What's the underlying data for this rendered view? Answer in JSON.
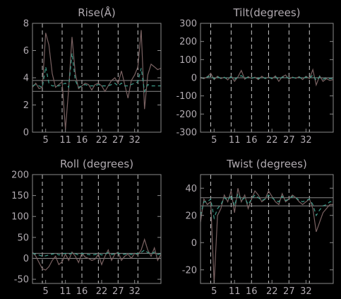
{
  "colors": {
    "background": "#000000",
    "axes": "#8a8a8a",
    "text": "#b0aab0",
    "series_main": "#7a6262",
    "series_ref": "#3e9c8a",
    "hlines": "#8a8a8a",
    "vlines": "#c8c8c8"
  },
  "chart_data": [
    {
      "id": "rise",
      "type": "line",
      "title": "Rise(Å)",
      "xlim": [
        1,
        40
      ],
      "ylim": [
        0,
        8
      ],
      "yticks": [
        0,
        2,
        4,
        6,
        8
      ],
      "xticks": [
        5,
        11,
        16,
        22,
        27,
        32
      ],
      "xtick_labels": [
        "5",
        "11",
        "16",
        "22",
        "27",
        "32"
      ],
      "vlines": [
        4,
        10,
        16,
        21,
        27,
        33
      ],
      "hlines": [
        3.0,
        3.8
      ],
      "x": [
        1,
        2,
        3,
        4,
        5,
        6,
        7,
        8,
        9,
        10,
        11,
        12,
        13,
        14,
        15,
        16,
        17,
        18,
        19,
        20,
        21,
        22,
        23,
        24,
        25,
        26,
        27,
        28,
        29,
        30,
        31,
        32,
        33,
        34,
        35,
        36,
        37,
        38,
        39,
        40
      ],
      "series": [
        {
          "name": "main",
          "color": "#7a6262",
          "values": [
            3.3,
            3.6,
            3.2,
            3.3,
            7.3,
            6.4,
            4.3,
            3.3,
            3.5,
            3.7,
            0.2,
            3.2,
            7.0,
            4.3,
            3.2,
            3.4,
            3.6,
            3.5,
            3.1,
            3.5,
            3.6,
            3.4,
            3.0,
            3.4,
            3.8,
            4.0,
            3.6,
            4.5,
            3.5,
            2.5,
            3.8,
            4.2,
            4.8,
            7.5,
            1.7,
            4.2,
            5.0,
            4.8,
            4.6,
            4.7
          ]
        },
        {
          "name": "reference",
          "color": "#3e9c8a",
          "dashed": true,
          "values": [
            3.4,
            3.5,
            3.4,
            3.3,
            4.8,
            3.6,
            3.4,
            3.4,
            3.4,
            3.5,
            3.6,
            3.3,
            5.8,
            3.8,
            3.3,
            3.4,
            3.5,
            3.4,
            3.4,
            3.4,
            3.5,
            3.4,
            3.4,
            3.4,
            3.5,
            3.6,
            3.4,
            3.6,
            3.4,
            3.4,
            3.5,
            3.6,
            3.7,
            4.7,
            3.0,
            3.5,
            3.4,
            3.4,
            3.4,
            3.4
          ]
        }
      ]
    },
    {
      "id": "tilt",
      "type": "line",
      "title": "Tilt(degrees)",
      "xlim": [
        1,
        40
      ],
      "ylim": [
        -300,
        300
      ],
      "yticks": [
        -300,
        -200,
        -100,
        0,
        100,
        200,
        300
      ],
      "xticks": [
        5,
        11,
        16,
        22,
        27,
        32
      ],
      "xtick_labels": [
        "5",
        "11",
        "16",
        "22",
        "27",
        "32"
      ],
      "vlines": [
        4,
        10,
        16,
        21,
        27,
        33
      ],
      "hlines": [
        0
      ],
      "x": [
        1,
        2,
        3,
        4,
        5,
        6,
        7,
        8,
        9,
        10,
        11,
        12,
        13,
        14,
        15,
        16,
        17,
        18,
        19,
        20,
        21,
        22,
        23,
        24,
        25,
        26,
        27,
        28,
        29,
        30,
        31,
        32,
        33,
        34,
        35,
        36,
        37,
        38,
        39,
        40
      ],
      "series": [
        {
          "name": "main",
          "color": "#7a6262",
          "values": [
            0,
            -5,
            5,
            25,
            -10,
            8,
            -5,
            3,
            -12,
            10,
            -20,
            5,
            40,
            -8,
            6,
            -4,
            3,
            -10,
            8,
            -5,
            4,
            -6,
            10,
            -20,
            5,
            15,
            -8,
            4,
            -3,
            6,
            -10,
            8,
            -5,
            45,
            -40,
            10,
            -20,
            -5,
            -15,
            -10
          ]
        },
        {
          "name": "reference",
          "color": "#3e9c8a",
          "dashed": true,
          "values": [
            2,
            -3,
            4,
            10,
            -6,
            5,
            -3,
            2,
            -6,
            5,
            -8,
            4,
            12,
            -4,
            3,
            -2,
            2,
            -5,
            4,
            -3,
            3,
            -3,
            5,
            -8,
            3,
            6,
            -4,
            2,
            -2,
            3,
            -5,
            4,
            -3,
            15,
            -14,
            5,
            -8,
            -2,
            -6,
            -4
          ]
        }
      ]
    },
    {
      "id": "roll",
      "type": "line",
      "title": "Roll (degrees)",
      "xlim": [
        1,
        40
      ],
      "ylim": [
        -60,
        200
      ],
      "yticks": [
        -50,
        0,
        50,
        100,
        150,
        200
      ],
      "xticks": [
        5,
        11,
        16,
        22,
        27,
        32
      ],
      "xtick_labels": [
        "5",
        "11",
        "16",
        "22",
        "27",
        "32"
      ],
      "vlines": [
        4,
        10,
        16,
        21,
        27,
        33
      ],
      "hlines": [
        0,
        12
      ],
      "x": [
        1,
        2,
        3,
        4,
        5,
        6,
        7,
        8,
        9,
        10,
        11,
        12,
        13,
        14,
        15,
        16,
        17,
        18,
        19,
        20,
        21,
        22,
        23,
        24,
        25,
        26,
        27,
        28,
        29,
        30,
        31,
        32,
        33,
        34,
        35,
        36,
        37,
        38,
        39,
        40
      ],
      "series": [
        {
          "name": "main",
          "color": "#7a6262",
          "values": [
            15,
            5,
            -10,
            -25,
            -28,
            -20,
            -5,
            5,
            -15,
            -8,
            10,
            -5,
            15,
            5,
            -10,
            12,
            3,
            0,
            -5,
            -2,
            10,
            -15,
            5,
            20,
            -5,
            10,
            15,
            -5,
            5,
            10,
            0,
            12,
            8,
            20,
            45,
            20,
            5,
            25,
            -5,
            10
          ]
        },
        {
          "name": "reference",
          "color": "#3e9c8a",
          "dashed": true,
          "values": [
            12,
            10,
            8,
            5,
            6,
            8,
            10,
            12,
            8,
            10,
            12,
            9,
            13,
            11,
            8,
            12,
            10,
            9,
            8,
            9,
            11,
            8,
            10,
            14,
            9,
            11,
            13,
            9,
            10,
            11,
            9,
            12,
            11,
            14,
            20,
            14,
            10,
            15,
            9,
            11
          ]
        }
      ]
    },
    {
      "id": "twist",
      "type": "line",
      "title": "Twist (degrees)",
      "xlim": [
        1,
        40
      ],
      "ylim": [
        -30,
        50
      ],
      "yticks": [
        -20,
        0,
        20,
        40
      ],
      "xticks": [
        5,
        11,
        16,
        22,
        27,
        32
      ],
      "xtick_labels": [
        "5",
        "11",
        "16",
        "22",
        "27",
        "32"
      ],
      "vlines": [
        4,
        10,
        16,
        21,
        27,
        33
      ],
      "hlines": [
        27,
        33
      ],
      "x": [
        1,
        2,
        3,
        4,
        5,
        6,
        7,
        8,
        9,
        10,
        11,
        12,
        13,
        14,
        15,
        16,
        17,
        18,
        19,
        20,
        21,
        22,
        23,
        24,
        25,
        26,
        27,
        28,
        29,
        30,
        31,
        32,
        33,
        34,
        35,
        36,
        37,
        38,
        39,
        40
      ],
      "series": [
        {
          "name": "main",
          "color": "#7a6262",
          "values": [
            15,
            32,
            28,
            30,
            -30,
            20,
            25,
            35,
            30,
            38,
            22,
            40,
            30,
            35,
            25,
            32,
            38,
            35,
            30,
            32,
            38,
            34,
            30,
            28,
            36,
            30,
            32,
            35,
            33,
            30,
            28,
            30,
            32,
            25,
            8,
            15,
            22,
            25,
            28,
            28
          ]
        },
        {
          "name": "reference",
          "color": "#3e9c8a",
          "dashed": true,
          "values": [
            20,
            30,
            30,
            32,
            18,
            25,
            28,
            33,
            31,
            35,
            27,
            36,
            31,
            33,
            28,
            32,
            35,
            33,
            31,
            32,
            35,
            33,
            31,
            30,
            34,
            31,
            32,
            34,
            33,
            31,
            30,
            31,
            32,
            28,
            20,
            24,
            27,
            28,
            30,
            30
          ]
        }
      ]
    }
  ]
}
